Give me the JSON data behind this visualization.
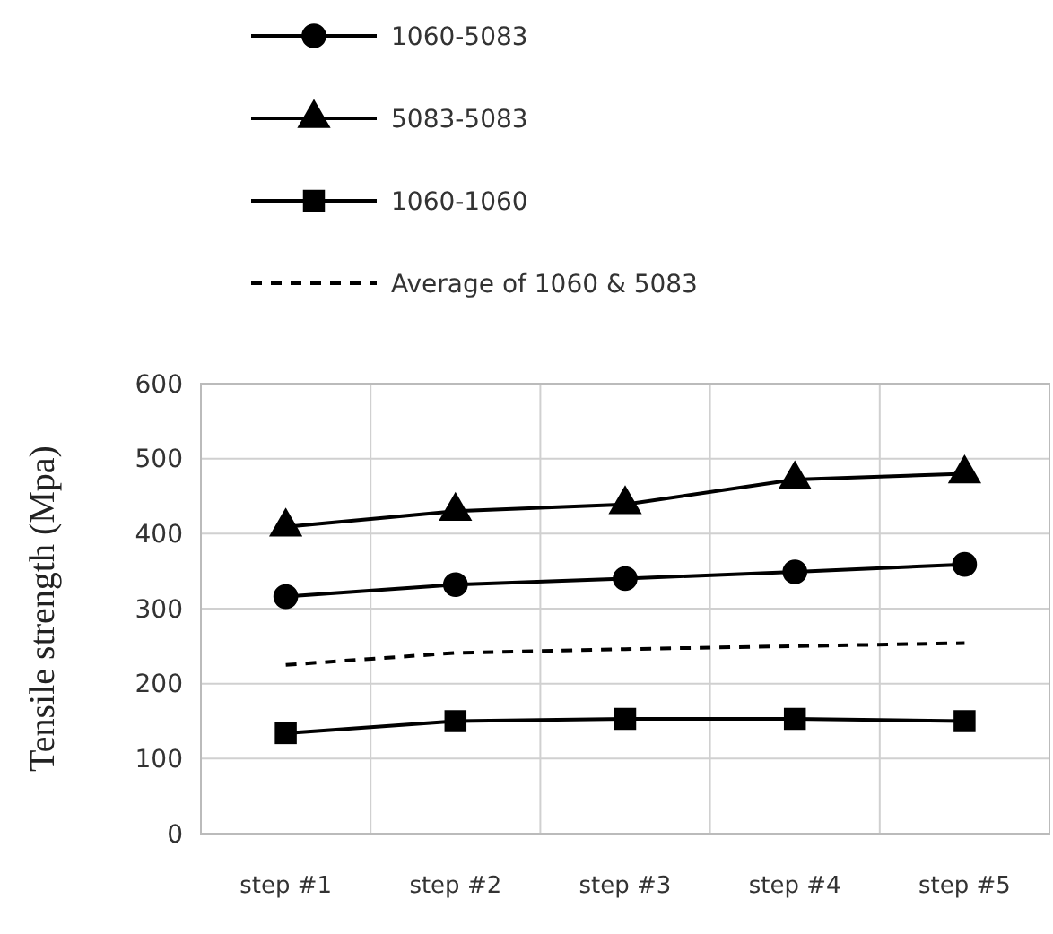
{
  "chart_data": {
    "type": "line",
    "ylabel": "Tensile strength (Mpa)",
    "categories": [
      "step #1",
      "step #2",
      "step #3",
      "step #4",
      "step #5"
    ],
    "ylim": [
      0,
      600
    ],
    "yticks": [
      0,
      100,
      200,
      300,
      400,
      500,
      600
    ],
    "grid": true,
    "legend": "top",
    "series": [
      {
        "name": "1060-5083",
        "color": "#000000",
        "marker": "circle",
        "line_style": "solid",
        "values": [
          316,
          332,
          340,
          349,
          359
        ]
      },
      {
        "name": "5083-5083",
        "color": "#000000",
        "marker": "triangle",
        "line_style": "solid",
        "values": [
          409,
          430,
          439,
          472,
          480
        ]
      },
      {
        "name": "1060-1060",
        "color": "#000000",
        "marker": "square",
        "line_style": "solid",
        "values": [
          134,
          150,
          153,
          153,
          150
        ]
      },
      {
        "name": "Average of 1060 & 5083",
        "color": "#000000",
        "marker": "none",
        "line_style": "dashed",
        "values": [
          225,
          241,
          246,
          250,
          254
        ]
      }
    ]
  }
}
